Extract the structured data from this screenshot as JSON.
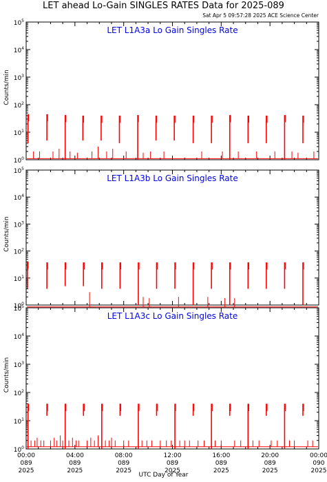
{
  "header": {
    "title": "LET ahead Lo-Gain SINGLES RATES Data for 2025-089",
    "timestamp": "Sat Apr  5 09:57:28 2025 ACE Science Center"
  },
  "axis": {
    "xlabel": "UTC Day of Year",
    "ylabel": "Counts/min"
  },
  "chart_data": [
    {
      "type": "line",
      "title": "LET L1A3a Lo Gain Singles Rate",
      "ylabel": "Counts/min",
      "xlabel": "UTC Day of Year",
      "yscale": "log",
      "ylim": [
        1,
        100000
      ],
      "xlim_hours": [
        0,
        24
      ],
      "x_ticks": [
        {
          "time": "00:00",
          "doy": "089",
          "year": "2025"
        },
        {
          "time": "04:00",
          "doy": "089",
          "year": "2025"
        },
        {
          "time": "08:00",
          "doy": "089",
          "year": "2025"
        },
        {
          "time": "12:00",
          "doy": "089",
          "year": "2025"
        },
        {
          "time": "16:00",
          "doy": "089",
          "year": "2025"
        },
        {
          "time": "20:00",
          "doy": "089",
          "year": "2025"
        },
        {
          "time": "00:00",
          "doy": "090",
          "year": "2025"
        }
      ],
      "color": "#ff0000",
      "baseline": 1.1,
      "spikes": [
        {
          "t": 0.15,
          "top": 45,
          "bottom": 4
        },
        {
          "t": 1.7,
          "top": 45,
          "bottom": 5
        },
        {
          "t": 3.2,
          "top": 42,
          "bottom": 1
        },
        {
          "t": 4.65,
          "top": 40,
          "bottom": 5
        },
        {
          "t": 6.15,
          "top": 40,
          "bottom": 5
        },
        {
          "t": 7.65,
          "top": 40,
          "bottom": 4
        },
        {
          "t": 9.15,
          "top": 42,
          "bottom": 1
        },
        {
          "t": 10.65,
          "top": 40,
          "bottom": 5
        },
        {
          "t": 12.15,
          "top": 40,
          "bottom": 5
        },
        {
          "t": 13.7,
          "top": 40,
          "bottom": 4
        },
        {
          "t": 15.2,
          "top": 40,
          "bottom": 4
        },
        {
          "t": 16.7,
          "top": 42,
          "bottom": 1
        },
        {
          "t": 18.2,
          "top": 40,
          "bottom": 4
        },
        {
          "t": 19.7,
          "top": 40,
          "bottom": 4
        },
        {
          "t": 21.2,
          "top": 42,
          "bottom": 1
        },
        {
          "t": 22.7,
          "top": 40,
          "bottom": 4
        }
      ],
      "noise": [
        {
          "t": 0.6,
          "v": 2
        },
        {
          "t": 1.1,
          "v": 2
        },
        {
          "t": 2.2,
          "v": 2
        },
        {
          "t": 2.7,
          "v": 2.5
        },
        {
          "t": 3.6,
          "v": 2
        },
        {
          "t": 4.2,
          "v": 1.8
        },
        {
          "t": 5.4,
          "v": 2
        },
        {
          "t": 5.9,
          "v": 3
        },
        {
          "t": 6.6,
          "v": 2
        },
        {
          "t": 7.1,
          "v": 2.5
        },
        {
          "t": 8.2,
          "v": 2
        },
        {
          "t": 9.6,
          "v": 1.8
        },
        {
          "t": 10.2,
          "v": 2
        },
        {
          "t": 11.3,
          "v": 2
        },
        {
          "t": 14.4,
          "v": 2
        },
        {
          "t": 16.1,
          "v": 2
        },
        {
          "t": 17.4,
          "v": 2
        },
        {
          "t": 18.9,
          "v": 2
        },
        {
          "t": 20.4,
          "v": 2
        },
        {
          "t": 21.8,
          "v": 2
        },
        {
          "t": 22.3,
          "v": 1.8
        },
        {
          "t": 23.6,
          "v": 2
        }
      ]
    },
    {
      "type": "line",
      "title": "LET L1A3b Lo Gain Singles Rate",
      "ylabel": "Counts/min",
      "xlabel": "UTC Day of Year",
      "yscale": "log",
      "ylim": [
        1,
        100000
      ],
      "xlim_hours": [
        0,
        24
      ],
      "x_ticks": [
        {
          "time": "00:00",
          "doy": "089",
          "year": "2025"
        },
        {
          "time": "04:00",
          "doy": "089",
          "year": "2025"
        },
        {
          "time": "08:00",
          "doy": "089",
          "year": "2025"
        },
        {
          "time": "12:00",
          "doy": "089",
          "year": "2025"
        },
        {
          "time": "16:00",
          "doy": "089",
          "year": "2025"
        },
        {
          "time": "20:00",
          "doy": "089",
          "year": "2025"
        },
        {
          "time": "00:00",
          "doy": "090",
          "year": "2025"
        }
      ],
      "color": "#ff0000",
      "baseline": 0.85,
      "spikes": [
        {
          "t": 0.1,
          "top": 40,
          "bottom": 4
        },
        {
          "t": 1.7,
          "top": 38,
          "bottom": 4
        },
        {
          "t": 3.2,
          "top": 38,
          "bottom": 5
        },
        {
          "t": 4.7,
          "top": 38,
          "bottom": 5
        },
        {
          "t": 6.2,
          "top": 38,
          "bottom": 4
        },
        {
          "t": 7.7,
          "top": 38,
          "bottom": 4
        },
        {
          "t": 9.2,
          "top": 38,
          "bottom": 1
        },
        {
          "t": 10.7,
          "top": 38,
          "bottom": 4
        },
        {
          "t": 12.2,
          "top": 38,
          "bottom": 4
        },
        {
          "t": 13.7,
          "top": 38,
          "bottom": 1
        },
        {
          "t": 15.2,
          "top": 38,
          "bottom": 4
        },
        {
          "t": 16.7,
          "top": 38,
          "bottom": 1
        },
        {
          "t": 18.2,
          "top": 38,
          "bottom": 4
        },
        {
          "t": 19.7,
          "top": 38,
          "bottom": 4
        },
        {
          "t": 21.2,
          "top": 38,
          "bottom": 4
        },
        {
          "t": 22.7,
          "top": 38,
          "bottom": 1
        }
      ],
      "noise": [
        {
          "t": 5.2,
          "v": 3
        },
        {
          "t": 9.6,
          "v": 2
        },
        {
          "t": 10.1,
          "v": 1.8
        },
        {
          "t": 12.5,
          "v": 2
        },
        {
          "t": 14.9,
          "v": 2
        },
        {
          "t": 16.3,
          "v": 1.8
        },
        {
          "t": 17.1,
          "v": 1.8
        }
      ]
    },
    {
      "type": "line",
      "title": "LET L1A3c Lo Gain Singles Rate",
      "ylabel": "Counts/min",
      "xlabel": "UTC Day of Year",
      "yscale": "log",
      "ylim": [
        1,
        100000
      ],
      "xlim_hours": [
        0,
        24
      ],
      "x_ticks": [
        {
          "time": "00:00",
          "doy": "089",
          "year": "2025"
        },
        {
          "time": "04:00",
          "doy": "089",
          "year": "2025"
        },
        {
          "time": "08:00",
          "doy": "089",
          "year": "2025"
        },
        {
          "time": "12:00",
          "doy": "089",
          "year": "2025"
        },
        {
          "time": "16:00",
          "doy": "089",
          "year": "2025"
        },
        {
          "time": "20:00",
          "doy": "089",
          "year": "2025"
        },
        {
          "time": "00:00",
          "doy": "090",
          "year": "2025"
        }
      ],
      "color": "#ff0000",
      "baseline": 1.2,
      "spikes": [
        {
          "t": 0.15,
          "top": 40,
          "bottom": 1
        },
        {
          "t": 1.7,
          "top": 40,
          "bottom": 15
        },
        {
          "t": 3.2,
          "top": 40,
          "bottom": 1
        },
        {
          "t": 4.7,
          "top": 40,
          "bottom": 15
        },
        {
          "t": 6.2,
          "top": 40,
          "bottom": 1
        },
        {
          "t": 7.7,
          "top": 40,
          "bottom": 15
        },
        {
          "t": 9.2,
          "top": 40,
          "bottom": 1
        },
        {
          "t": 10.7,
          "top": 40,
          "bottom": 15
        },
        {
          "t": 12.2,
          "top": 40,
          "bottom": 1
        },
        {
          "t": 13.7,
          "top": 40,
          "bottom": 15
        },
        {
          "t": 15.2,
          "top": 40,
          "bottom": 1
        },
        {
          "t": 16.7,
          "top": 40,
          "bottom": 15
        },
        {
          "t": 18.2,
          "top": 40,
          "bottom": 1
        },
        {
          "t": 19.7,
          "top": 40,
          "bottom": 15
        },
        {
          "t": 21.2,
          "top": 40,
          "bottom": 1
        },
        {
          "t": 22.7,
          "top": 40,
          "bottom": 15
        }
      ],
      "noise": [
        {
          "t": 0.4,
          "v": 2
        },
        {
          "t": 0.7,
          "v": 2
        },
        {
          "t": 0.9,
          "v": 2.5
        },
        {
          "t": 1.2,
          "v": 2
        },
        {
          "t": 1.45,
          "v": 2
        },
        {
          "t": 2.0,
          "v": 2
        },
        {
          "t": 2.3,
          "v": 2.5
        },
        {
          "t": 2.5,
          "v": 2
        },
        {
          "t": 2.8,
          "v": 3
        },
        {
          "t": 3.0,
          "v": 2
        },
        {
          "t": 3.5,
          "v": 2
        },
        {
          "t": 3.8,
          "v": 2.5
        },
        {
          "t": 4.1,
          "v": 2
        },
        {
          "t": 4.3,
          "v": 2
        },
        {
          "t": 5.0,
          "v": 2
        },
        {
          "t": 5.3,
          "v": 2.5
        },
        {
          "t": 5.6,
          "v": 2
        },
        {
          "t": 5.9,
          "v": 3
        },
        {
          "t": 6.5,
          "v": 2
        },
        {
          "t": 6.8,
          "v": 2
        },
        {
          "t": 7.0,
          "v": 2.5
        },
        {
          "t": 7.3,
          "v": 2
        },
        {
          "t": 8.0,
          "v": 2
        },
        {
          "t": 8.4,
          "v": 2
        },
        {
          "t": 9.5,
          "v": 2
        },
        {
          "t": 9.9,
          "v": 2
        },
        {
          "t": 10.3,
          "v": 2
        },
        {
          "t": 11.0,
          "v": 2
        },
        {
          "t": 11.5,
          "v": 2
        },
        {
          "t": 11.9,
          "v": 2
        },
        {
          "t": 12.6,
          "v": 2
        },
        {
          "t": 13.0,
          "v": 2
        },
        {
          "t": 13.4,
          "v": 2
        },
        {
          "t": 14.1,
          "v": 2
        },
        {
          "t": 14.6,
          "v": 2
        },
        {
          "t": 15.5,
          "v": 2
        },
        {
          "t": 16.0,
          "v": 2
        },
        {
          "t": 17.1,
          "v": 2
        },
        {
          "t": 17.6,
          "v": 2
        },
        {
          "t": 18.6,
          "v": 2
        },
        {
          "t": 19.1,
          "v": 2
        },
        {
          "t": 20.1,
          "v": 2
        },
        {
          "t": 20.6,
          "v": 2
        },
        {
          "t": 21.6,
          "v": 2
        },
        {
          "t": 22.0,
          "v": 2
        },
        {
          "t": 23.1,
          "v": 2
        },
        {
          "t": 23.5,
          "v": 2
        }
      ]
    }
  ]
}
